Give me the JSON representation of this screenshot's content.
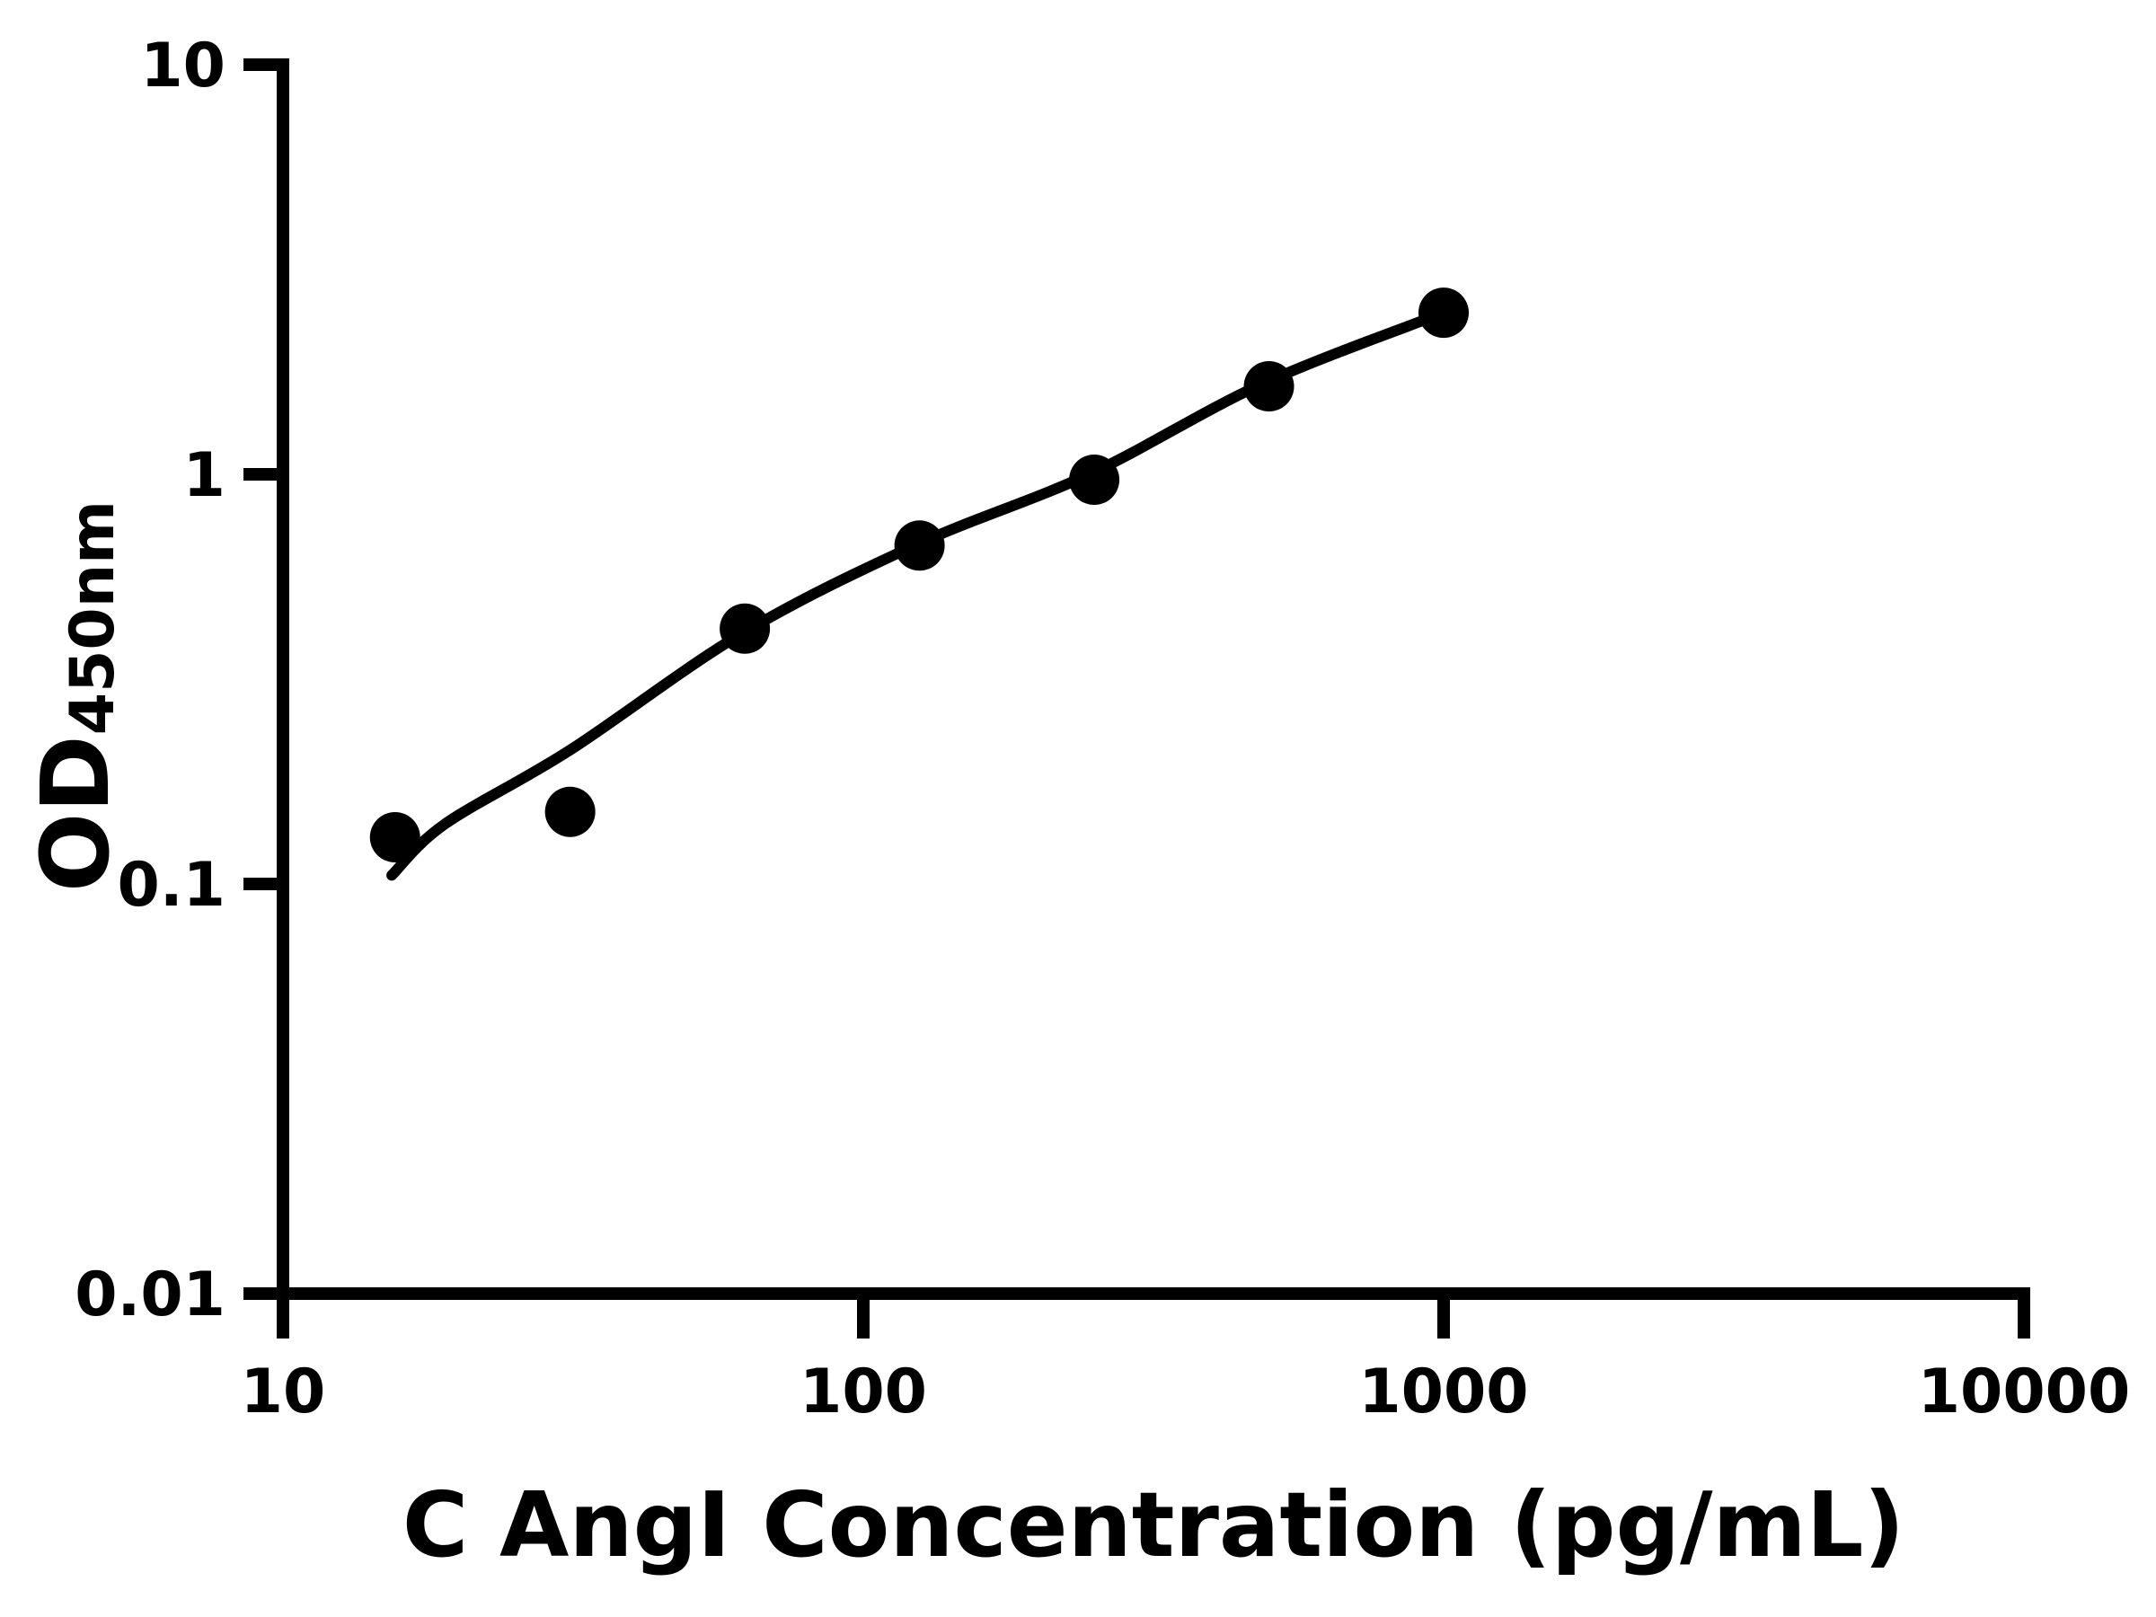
{
  "figure": {
    "background": "#ffffff",
    "ink_color": "#000000"
  },
  "chart_data": {
    "type": "scatter",
    "title": "",
    "xlabel": "C AngI Concentration (pg/mL)",
    "ylabel": "OD450nm",
    "ylabel_main": "OD",
    "ylabel_sub": "450nm",
    "x_scale": "log",
    "y_scale": "log",
    "xlim": [
      10,
      10000
    ],
    "ylim": [
      0.01,
      10
    ],
    "grid": false,
    "legend": null,
    "x_ticks": [
      {
        "value": 10,
        "label": "10"
      },
      {
        "value": 100,
        "label": "100"
      },
      {
        "value": 1000,
        "label": "1000"
      },
      {
        "value": 10000,
        "label": "10000"
      }
    ],
    "y_ticks": [
      {
        "value": 10,
        "label": "10"
      },
      {
        "value": 1,
        "label": "1"
      },
      {
        "value": 0.1,
        "label": "0.1"
      },
      {
        "value": 0.01,
        "label": "0.01"
      }
    ],
    "series": [
      {
        "name": "standard-curve-points",
        "marker": "circle",
        "color": "#000000",
        "points": [
          {
            "x": 15.6,
            "y": 0.13
          },
          {
            "x": 31.25,
            "y": 0.15
          },
          {
            "x": 62.5,
            "y": 0.42
          },
          {
            "x": 125,
            "y": 0.67
          },
          {
            "x": 250,
            "y": 0.97
          },
          {
            "x": 500,
            "y": 1.64
          },
          {
            "x": 1000,
            "y": 2.48
          }
        ]
      }
    ],
    "fit_curve": [
      {
        "x": 15.4,
        "y": 0.105
      },
      {
        "x": 19.0,
        "y": 0.14
      },
      {
        "x": 31.2,
        "y": 0.212
      },
      {
        "x": 62.0,
        "y": 0.41
      },
      {
        "x": 124.0,
        "y": 0.675
      },
      {
        "x": 245.0,
        "y": 1.0
      },
      {
        "x": 486.0,
        "y": 1.66
      },
      {
        "x": 1000.0,
        "y": 2.48
      }
    ]
  }
}
